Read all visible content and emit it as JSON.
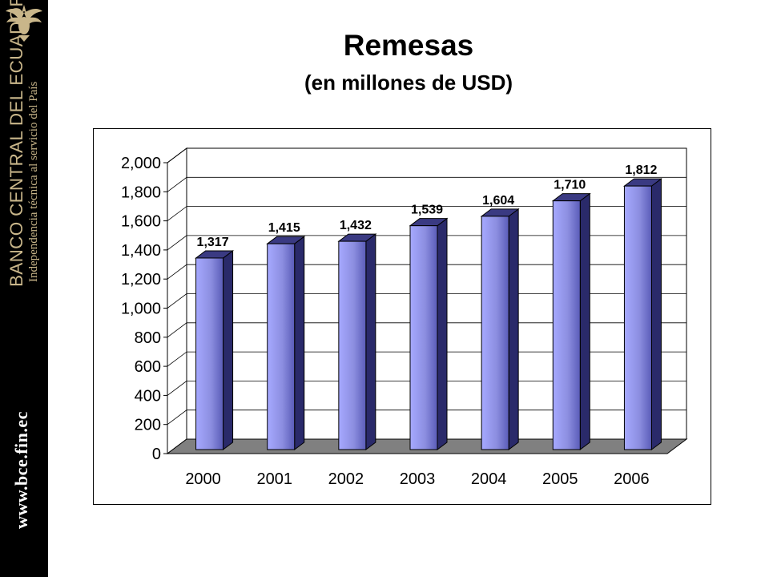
{
  "sidebar": {
    "logo_icon": "eagle-crest-icon",
    "bank_name": "BANCO CENTRAL DEL ECUADOR",
    "tagline": "Independencia técnica al servicio del País",
    "website": "www.bce.fin.ec",
    "background": "#000000",
    "text_color": "#c9b68a"
  },
  "header": {
    "title": "Remesas",
    "subtitle": "(en millones de USD)"
  },
  "chart_data": {
    "type": "bar",
    "categories": [
      "2000",
      "2001",
      "2002",
      "2003",
      "2004",
      "2005",
      "2006"
    ],
    "values": [
      1317,
      1415,
      1432,
      1539,
      1604,
      1710,
      1812
    ],
    "data_labels": [
      "1,317",
      "1,415",
      "1,432",
      "1,539",
      "1,604",
      "1,710",
      "1,812"
    ],
    "y_ticks": [
      "0",
      "200",
      "400",
      "600",
      "800",
      "1,000",
      "1,200",
      "1,400",
      "1,600",
      "1,800",
      "2,000"
    ],
    "ylim": [
      0,
      2000
    ],
    "grid": true,
    "legend": "none",
    "three_d": true,
    "colors": {
      "bar_front": "#8c8ee0",
      "bar_side": "#2a2a6a",
      "bar_top": "#3a3a82",
      "floor": "#808080"
    }
  }
}
